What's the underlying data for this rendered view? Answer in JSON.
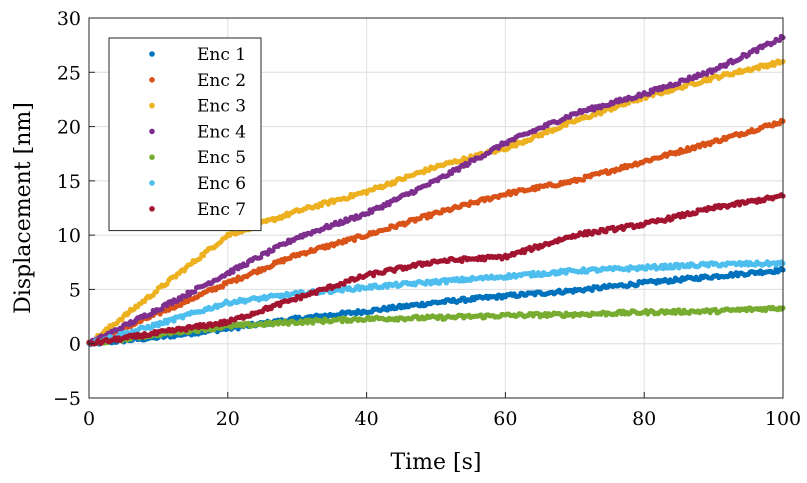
{
  "chart_data": {
    "type": "scatter",
    "xlabel": "Time [s]",
    "ylabel": "Displacement [nm]",
    "xlim": [
      0,
      100
    ],
    "ylim": [
      -5,
      30
    ],
    "xticks": [
      0,
      20,
      40,
      60,
      80,
      100
    ],
    "yticks": [
      -5,
      0,
      5,
      10,
      15,
      20,
      25,
      30
    ],
    "grid": true,
    "legend_position": "top-left",
    "series": [
      {
        "name": "Enc 1",
        "color": "#0072BD",
        "x": [
          0,
          10,
          20,
          30,
          40,
          50,
          60,
          70,
          80,
          90,
          100
        ],
        "values": [
          0,
          0.6,
          1.4,
          2.3,
          3.0,
          3.8,
          4.4,
          4.9,
          5.6,
          6.2,
          6.8
        ]
      },
      {
        "name": "Enc 2",
        "color": "#D95319",
        "x": [
          0,
          10,
          20,
          30,
          40,
          50,
          60,
          70,
          80,
          90,
          100
        ],
        "values": [
          0,
          2.8,
          5.6,
          8.2,
          10.0,
          12.0,
          13.8,
          15.0,
          16.8,
          18.6,
          20.5
        ]
      },
      {
        "name": "Enc 3",
        "color": "#EDB120",
        "x": [
          0,
          10,
          20,
          30,
          40,
          50,
          60,
          70,
          80,
          90,
          100
        ],
        "values": [
          0,
          5.0,
          10.0,
          12.2,
          14.0,
          16.3,
          18.0,
          20.5,
          22.7,
          24.5,
          26.0
        ]
      },
      {
        "name": "Enc 4",
        "color": "#7E2F8E",
        "x": [
          0,
          10,
          20,
          30,
          40,
          50,
          60,
          70,
          80,
          90,
          100
        ],
        "values": [
          0,
          3.2,
          6.5,
          9.8,
          12.0,
          15.0,
          18.5,
          21.2,
          23.0,
          25.2,
          28.2
        ]
      },
      {
        "name": "Enc 5",
        "color": "#77AC30",
        "x": [
          0,
          10,
          20,
          30,
          40,
          50,
          60,
          70,
          80,
          90,
          100
        ],
        "values": [
          0,
          0.9,
          1.6,
          2.0,
          2.3,
          2.4,
          2.6,
          2.7,
          2.9,
          3.0,
          3.3
        ]
      },
      {
        "name": "Enc 6",
        "color": "#4DBEEE",
        "x": [
          0,
          10,
          20,
          30,
          40,
          50,
          60,
          70,
          80,
          90,
          100
        ],
        "values": [
          0,
          1.8,
          3.8,
          4.6,
          5.2,
          5.7,
          6.2,
          6.7,
          7.0,
          7.3,
          7.4
        ]
      },
      {
        "name": "Enc 7",
        "color": "#A2142F",
        "x": [
          0,
          10,
          20,
          30,
          40,
          50,
          60,
          70,
          80,
          90,
          100
        ],
        "values": [
          0,
          1.0,
          2.0,
          4.2,
          6.3,
          7.6,
          8.0,
          10.0,
          11.0,
          12.5,
          13.6
        ]
      }
    ]
  }
}
